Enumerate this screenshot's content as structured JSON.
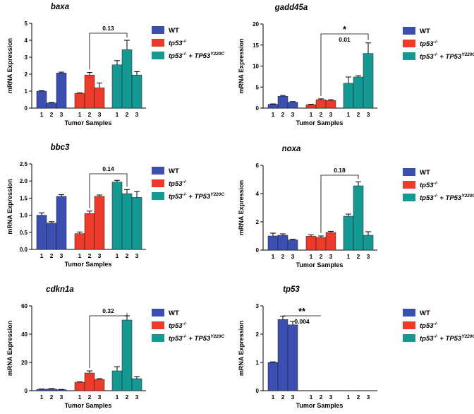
{
  "legend": [
    {
      "label": "WT",
      "italic": false,
      "color": "#3a4fb0"
    },
    {
      "label": "tp53",
      "sup": "-/-",
      "italic": true,
      "color": "#ee3a2a"
    },
    {
      "label": "tp53",
      "sup": "-/-",
      "label2": " + TP53",
      "sup2": "Y220C",
      "italic": true,
      "color": "#149a92"
    }
  ],
  "chart_data": [
    {
      "type": "bar",
      "title": "baxa",
      "ylabel": "mRNA Expression",
      "xlabel": "Tumor Samples",
      "ylim": [
        0,
        5
      ],
      "yticks": [
        0,
        1,
        2,
        3,
        4,
        5
      ],
      "groups": [
        {
          "name": "WT",
          "categories": [
            "1",
            "2",
            "3"
          ],
          "values": [
            1.0,
            0.3,
            2.07
          ],
          "errors": [
            0.03,
            0.03,
            0.05
          ]
        },
        {
          "name": "tp53-/-",
          "categories": [
            "1",
            "2",
            "3"
          ],
          "values": [
            0.87,
            1.95,
            1.2
          ],
          "errors": [
            0.03,
            0.15,
            0.28
          ]
        },
        {
          "name": "tp53-/- + TP53Y220C",
          "categories": [
            "1",
            "2",
            "3"
          ],
          "values": [
            2.55,
            3.45,
            1.95
          ],
          "errors": [
            0.25,
            0.55,
            0.2
          ]
        }
      ],
      "annotation": {
        "text": "0.13",
        "stars": "",
        "from": [
          1,
          1
        ],
        "to": [
          2,
          1
        ]
      }
    },
    {
      "type": "bar",
      "title": "gadd45a",
      "ylabel": "mRNA Expression",
      "xlabel": "Tumor Samples",
      "ylim": [
        0,
        20
      ],
      "yticks": [
        0,
        5,
        10,
        15,
        20
      ],
      "groups": [
        {
          "name": "WT",
          "categories": [
            "1",
            "2",
            "3"
          ],
          "values": [
            0.9,
            2.8,
            1.4
          ],
          "errors": [
            0.1,
            0.2,
            0.15
          ]
        },
        {
          "name": "tp53-/-",
          "categories": [
            "1",
            "2",
            "3"
          ],
          "values": [
            0.8,
            2.0,
            1.8
          ],
          "errors": [
            0.1,
            0.2,
            0.2
          ]
        },
        {
          "name": "tp53-/- + TP53Y220C",
          "categories": [
            "1",
            "2",
            "3"
          ],
          "values": [
            5.9,
            7.4,
            13.0
          ],
          "errors": [
            1.5,
            0.3,
            2.5
          ]
        }
      ],
      "annotation": {
        "text": "0.01",
        "stars": "*",
        "from": [
          1,
          1
        ],
        "to": [
          2,
          2
        ]
      }
    },
    {
      "type": "bar",
      "title": "bbc3",
      "ylabel": "mRNA Expression",
      "xlabel": "Tumor Samples",
      "ylim": [
        0,
        2.5
      ],
      "yticks": [
        0.0,
        0.5,
        1.0,
        1.5,
        2.0,
        2.5
      ],
      "groups": [
        {
          "name": "WT",
          "categories": [
            "1",
            "2",
            "3"
          ],
          "values": [
            1.0,
            0.77,
            1.55
          ],
          "errors": [
            0.07,
            0.04,
            0.05
          ]
        },
        {
          "name": "tp53-/-",
          "categories": [
            "1",
            "2",
            "3"
          ],
          "values": [
            0.46,
            1.05,
            1.55
          ],
          "errors": [
            0.05,
            0.07,
            0.04
          ]
        },
        {
          "name": "tp53-/- + TP53Y220C",
          "categories": [
            "1",
            "2",
            "3"
          ],
          "values": [
            1.97,
            1.63,
            1.52
          ],
          "errors": [
            0.05,
            0.12,
            0.17
          ]
        }
      ],
      "annotation": {
        "text": "0.14",
        "stars": "",
        "from": [
          1,
          1
        ],
        "to": [
          2,
          1
        ]
      }
    },
    {
      "type": "bar",
      "title": "noxa",
      "ylabel": "mRNA Expression",
      "xlabel": "Tumor Samples",
      "ylim": [
        0,
        6
      ],
      "yticks": [
        0,
        2,
        4,
        6
      ],
      "groups": [
        {
          "name": "WT",
          "categories": [
            "1",
            "2",
            "3"
          ],
          "values": [
            1.0,
            1.05,
            0.72
          ],
          "errors": [
            0.2,
            0.1,
            0.05
          ]
        },
        {
          "name": "tp53-/-",
          "categories": [
            "1",
            "2",
            "3"
          ],
          "values": [
            0.98,
            0.9,
            1.25
          ],
          "errors": [
            0.1,
            0.1,
            0.08
          ]
        },
        {
          "name": "tp53-/- + TP53Y220C",
          "categories": [
            "1",
            "2",
            "3"
          ],
          "values": [
            2.4,
            4.55,
            1.05
          ],
          "errors": [
            0.15,
            0.28,
            0.25
          ]
        }
      ],
      "annotation": {
        "text": "0.18",
        "stars": "",
        "from": [
          1,
          1
        ],
        "to": [
          2,
          1
        ]
      }
    },
    {
      "type": "bar",
      "title": "cdkn1a",
      "ylabel": "mRNA Expression",
      "xlabel": "Tumor Samples",
      "ylim": [
        0,
        60
      ],
      "yticks": [
        0,
        20,
        40,
        60
      ],
      "groups": [
        {
          "name": "WT",
          "categories": [
            "1",
            "2",
            "3"
          ],
          "values": [
            1.0,
            1.2,
            0.7
          ],
          "errors": [
            0.2,
            0.3,
            0.2
          ]
        },
        {
          "name": "tp53-/-",
          "categories": [
            "1",
            "2",
            "3"
          ],
          "values": [
            6.0,
            12.5,
            8.0
          ],
          "errors": [
            0.3,
            1.5,
            0.5
          ]
        },
        {
          "name": "tp53-/- + TP53Y220C",
          "categories": [
            "1",
            "2",
            "3"
          ],
          "values": [
            14.0,
            50.0,
            8.5
          ],
          "errors": [
            3.0,
            3.0,
            1.5
          ]
        }
      ],
      "annotation": {
        "text": "0.32",
        "stars": "",
        "from": [
          1,
          1
        ],
        "to": [
          2,
          1
        ]
      }
    },
    {
      "type": "bar",
      "title": "tp53",
      "ylabel": "mRNA Expression",
      "xlabel": "Tumor Samples",
      "ylim": [
        0,
        3
      ],
      "yticks": [
        0,
        1,
        2,
        3
      ],
      "groups": [
        {
          "name": "WT",
          "categories": [
            "1",
            "2",
            "3"
          ],
          "values": [
            1.0,
            2.52,
            2.33
          ],
          "errors": [
            0.02,
            0.12,
            0.12
          ]
        },
        {
          "name": "tp53-/-",
          "categories": [
            "1",
            "2",
            "3"
          ],
          "values": [
            0,
            0,
            0
          ],
          "errors": [
            0,
            0,
            0
          ]
        },
        {
          "name": "tp53-/- + TP53Y220C",
          "categories": [
            "1",
            "2",
            "3"
          ],
          "values": [
            0,
            0,
            0
          ],
          "errors": [
            0,
            0,
            0
          ]
        }
      ],
      "annotation": {
        "text": "0.004",
        "stars": "**",
        "from": [
          0,
          1
        ],
        "to": [
          1,
          1
        ]
      }
    }
  ]
}
